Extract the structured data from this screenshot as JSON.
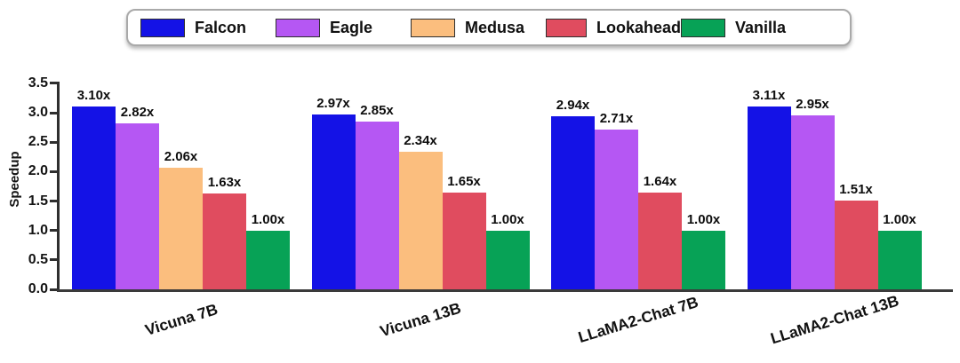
{
  "figure": {
    "background": "#ffffff"
  },
  "chart_data": {
    "type": "bar",
    "title": "",
    "xlabel": "",
    "ylabel": "Speedup",
    "ylim": [
      0,
      3.5
    ],
    "yticks": [
      0.0,
      0.5,
      1.0,
      1.5,
      2.0,
      2.5,
      3.0,
      3.5
    ],
    "grid": false,
    "legend_position": "top",
    "axis_color": "#333333",
    "text_color": "#101010",
    "categories": [
      "Vicuna 7B",
      "Vicuna 13B",
      "LLaMA2-Chat 7B",
      "LLaMA2-Chat 13B"
    ],
    "series": [
      {
        "name": "Falcon",
        "color": "#1412e6",
        "values": [
          3.1,
          2.97,
          2.94,
          3.11
        ],
        "value_labels": [
          "3.10x",
          "2.97x",
          "2.94x",
          "3.11x"
        ]
      },
      {
        "name": "Eagle",
        "color": "#b557f3",
        "values": [
          2.82,
          2.85,
          2.71,
          2.95
        ],
        "value_labels": [
          "2.82x",
          "2.85x",
          "2.71x",
          "2.95x"
        ]
      },
      {
        "name": "Medusa",
        "color": "#fbbe7e",
        "values": [
          2.06,
          2.34,
          null,
          null
        ],
        "value_labels": [
          "2.06x",
          "2.34x",
          null,
          null
        ]
      },
      {
        "name": "Lookahead",
        "color": "#e04c5f",
        "values": [
          1.63,
          1.65,
          1.64,
          1.51
        ],
        "value_labels": [
          "1.63x",
          "1.65x",
          "1.64x",
          "1.51x"
        ]
      },
      {
        "name": "Vanilla",
        "color": "#07a256",
        "values": [
          1.0,
          1.0,
          1.0,
          1.0
        ],
        "value_labels": [
          "1.00x",
          "1.00x",
          "1.00x",
          "1.00x"
        ]
      }
    ]
  }
}
